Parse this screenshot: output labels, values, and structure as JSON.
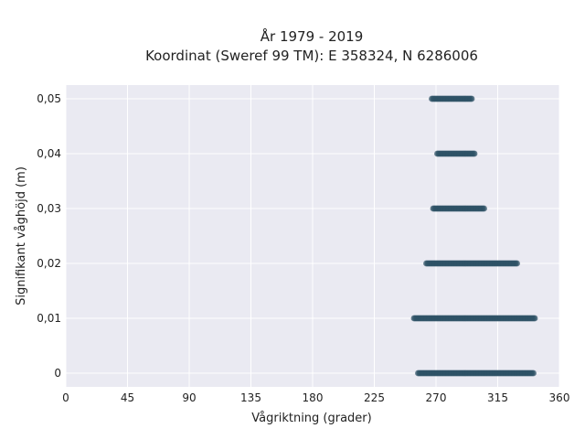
{
  "chart_data": {
    "type": "scatter",
    "title": "År 1979 - 2019",
    "subtitle": "Koordinat (Sweref 99 TM): E 358324, N 6286006",
    "xlabel": "Vågriktning (grader)",
    "ylabel": "Signifikant våghöjd (m)",
    "xlim": [
      0,
      360
    ],
    "ylim": [
      -0.0025,
      0.0525
    ],
    "x_ticks": [
      "0",
      "45",
      "90",
      "135",
      "180",
      "225",
      "270",
      "315",
      "360"
    ],
    "x_tick_values": [
      0,
      45,
      90,
      135,
      180,
      225,
      270,
      315,
      360
    ],
    "y_ticks": [
      "0",
      "0,01",
      "0,02",
      "0,03",
      "0,04",
      "0,05"
    ],
    "y_tick_values": [
      0,
      0.01,
      0.02,
      0.03,
      0.04,
      0.05
    ],
    "grid": true,
    "series": [
      {
        "point_color": "#2e5266",
        "points": [
          {
            "y": 0.05,
            "x_min": 267,
            "x_max": 296
          },
          {
            "y": 0.04,
            "x_min": 271,
            "x_max": 298
          },
          {
            "y": 0.03,
            "x_min": 268,
            "x_max": 305
          },
          {
            "y": 0.02,
            "x_min": 263,
            "x_max": 329
          },
          {
            "y": 0.01,
            "x_min": 254,
            "x_max": 342
          },
          {
            "y": 0.0,
            "x_min": 257,
            "x_max": 341
          }
        ]
      }
    ]
  },
  "colors": {
    "plot_background": "#eaeaf2",
    "grid": "#ffffff",
    "marker": "#2e5266"
  }
}
